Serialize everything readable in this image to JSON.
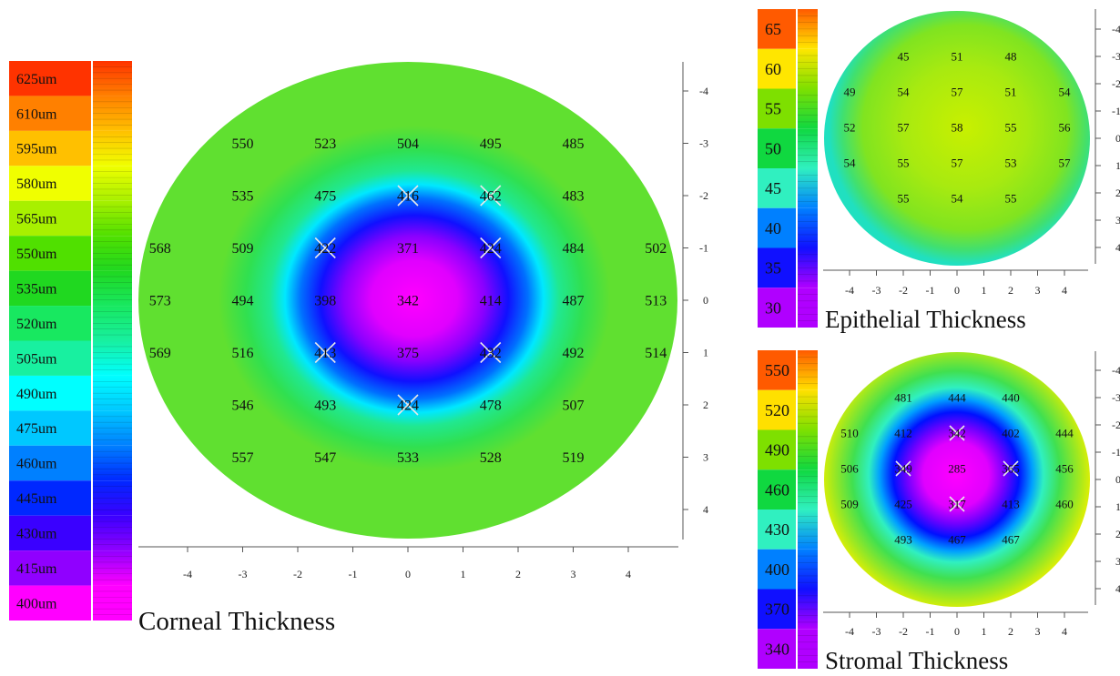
{
  "panels": [
    {
      "title": "Corneal Thickness",
      "legend_unit": "um",
      "legend_labels": [
        625,
        610,
        595,
        580,
        565,
        550,
        535,
        520,
        505,
        490,
        475,
        460,
        445,
        430,
        415,
        400
      ],
      "legend_colors": [
        "#ff3300",
        "#ff8000",
        "#ffc000",
        "#f0ff00",
        "#a8f000",
        "#50e000",
        "#20d820",
        "#18e860",
        "#18f0a0",
        "#00ffff",
        "#00c8ff",
        "#0080ff",
        "#0028ff",
        "#3a00ff",
        "#9000ff",
        "#ff00ff"
      ],
      "x_ticks": [
        -4,
        -3,
        -2,
        -1,
        0,
        1,
        2,
        3,
        4
      ],
      "y_ticks": [
        -4,
        -3,
        -2,
        -1,
        0,
        1,
        2,
        3,
        4
      ],
      "points": [
        {
          "x": -3,
          "y": -3,
          "v": "550"
        },
        {
          "x": -1.5,
          "y": -3,
          "v": "523"
        },
        {
          "x": 0,
          "y": -3,
          "v": "504"
        },
        {
          "x": 1.5,
          "y": -3,
          "v": "495"
        },
        {
          "x": 3,
          "y": -3,
          "v": "485"
        },
        {
          "x": -3,
          "y": -2,
          "v": "535"
        },
        {
          "x": -1.5,
          "y": -2,
          "v": "475"
        },
        {
          "x": 0,
          "y": -2,
          "v": "416",
          "mark": true
        },
        {
          "x": 1.5,
          "y": -2,
          "v": "462",
          "mark": true
        },
        {
          "x": 3,
          "y": -2,
          "v": "483"
        },
        {
          "x": -4.5,
          "y": -1,
          "v": "568"
        },
        {
          "x": -3,
          "y": -1,
          "v": "509"
        },
        {
          "x": -1.5,
          "y": -1,
          "v": "422",
          "mark": true
        },
        {
          "x": 0,
          "y": -1,
          "v": "371"
        },
        {
          "x": 1.5,
          "y": -1,
          "v": "424",
          "mark": true
        },
        {
          "x": 3,
          "y": -1,
          "v": "484"
        },
        {
          "x": 4.5,
          "y": -1,
          "v": "502"
        },
        {
          "x": -4.5,
          "y": 0,
          "v": "573"
        },
        {
          "x": -3,
          "y": 0,
          "v": "494"
        },
        {
          "x": -1.5,
          "y": 0,
          "v": "398"
        },
        {
          "x": 0,
          "y": 0,
          "v": "342"
        },
        {
          "x": 1.5,
          "y": 0,
          "v": "414"
        },
        {
          "x": 3,
          "y": 0,
          "v": "487"
        },
        {
          "x": 4.5,
          "y": 0,
          "v": "513"
        },
        {
          "x": -4.5,
          "y": 1,
          "v": "569"
        },
        {
          "x": -3,
          "y": 1,
          "v": "516"
        },
        {
          "x": -1.5,
          "y": 1,
          "v": "413",
          "mark": true
        },
        {
          "x": 0,
          "y": 1,
          "v": "375"
        },
        {
          "x": 1.5,
          "y": 1,
          "v": "432",
          "mark": true
        },
        {
          "x": 3,
          "y": 1,
          "v": "492"
        },
        {
          "x": 4.5,
          "y": 1,
          "v": "514"
        },
        {
          "x": -3,
          "y": 2,
          "v": "546"
        },
        {
          "x": -1.5,
          "y": 2,
          "v": "493"
        },
        {
          "x": 0,
          "y": 2,
          "v": "424",
          "mark": true
        },
        {
          "x": 1.5,
          "y": 2,
          "v": "478"
        },
        {
          "x": 3,
          "y": 2,
          "v": "507"
        },
        {
          "x": -3,
          "y": 3,
          "v": "557"
        },
        {
          "x": -1.5,
          "y": 3,
          "v": "547"
        },
        {
          "x": 0,
          "y": 3,
          "v": "533"
        },
        {
          "x": 1.5,
          "y": 3,
          "v": "528"
        },
        {
          "x": 3,
          "y": 3,
          "v": "519"
        }
      ],
      "map_gradient": [
        {
          "offset": 0.0,
          "color": "#ff00ff"
        },
        {
          "offset": 0.22,
          "color": "#e000ff"
        },
        {
          "offset": 0.36,
          "color": "#8a00ff"
        },
        {
          "offset": 0.48,
          "color": "#1010ff"
        },
        {
          "offset": 0.58,
          "color": "#0070ff"
        },
        {
          "offset": 0.66,
          "color": "#00e8ff"
        },
        {
          "offset": 0.74,
          "color": "#20e890"
        },
        {
          "offset": 0.86,
          "color": "#30e050"
        },
        {
          "offset": 1.0,
          "color": "#60e030"
        }
      ]
    },
    {
      "title": "Epithelial Thickness",
      "legend_unit": "",
      "legend_labels": [
        65,
        60,
        55,
        50,
        45,
        40,
        35,
        30
      ],
      "legend_colors": [
        "#ff5a00",
        "#ffe600",
        "#7ee000",
        "#10d840",
        "#30f0c0",
        "#0080ff",
        "#1010ff",
        "#b000ff"
      ],
      "x_ticks": [
        -4,
        -3,
        -2,
        -1,
        0,
        1,
        2,
        3,
        4
      ],
      "y_ticks": [
        -4,
        -3,
        -2,
        -1,
        0,
        1,
        2,
        3,
        4
      ],
      "points": [
        {
          "x": -2,
          "y": -3,
          "v": "45"
        },
        {
          "x": 0,
          "y": -3,
          "v": "51"
        },
        {
          "x": 2,
          "y": -3,
          "v": "48"
        },
        {
          "x": -4,
          "y": -1.7,
          "v": "49"
        },
        {
          "x": -2,
          "y": -1.7,
          "v": "54"
        },
        {
          "x": 0,
          "y": -1.7,
          "v": "57"
        },
        {
          "x": 2,
          "y": -1.7,
          "v": "51"
        },
        {
          "x": 4,
          "y": -1.7,
          "v": "54"
        },
        {
          "x": -4,
          "y": -0.4,
          "v": "52"
        },
        {
          "x": -2,
          "y": -0.4,
          "v": "57"
        },
        {
          "x": 0,
          "y": -0.4,
          "v": "58"
        },
        {
          "x": 2,
          "y": -0.4,
          "v": "55"
        },
        {
          "x": 4,
          "y": -0.4,
          "v": "56"
        },
        {
          "x": -4,
          "y": 0.9,
          "v": "54"
        },
        {
          "x": -2,
          "y": 0.9,
          "v": "55"
        },
        {
          "x": 0,
          "y": 0.9,
          "v": "57"
        },
        {
          "x": 2,
          "y": 0.9,
          "v": "53"
        },
        {
          "x": 4,
          "y": 0.9,
          "v": "57"
        },
        {
          "x": -2,
          "y": 2.2,
          "v": "55"
        },
        {
          "x": 0,
          "y": 2.2,
          "v": "54"
        },
        {
          "x": 2,
          "y": 2.2,
          "v": "55"
        }
      ],
      "map_gradient": [
        {
          "offset": 0.0,
          "color": "#c8f000"
        },
        {
          "offset": 0.45,
          "color": "#a8ea10"
        },
        {
          "offset": 0.75,
          "color": "#80e420"
        },
        {
          "offset": 0.9,
          "color": "#40e070"
        },
        {
          "offset": 1.0,
          "color": "#20e0c0"
        }
      ]
    },
    {
      "title": "Stromal Thickness",
      "legend_unit": "",
      "legend_labels": [
        550,
        520,
        490,
        460,
        430,
        400,
        370,
        340
      ],
      "legend_colors": [
        "#ff5a00",
        "#ffe000",
        "#7ee000",
        "#10d840",
        "#30f0c0",
        "#0080ff",
        "#1010ff",
        "#b000ff"
      ],
      "x_ticks": [
        -4,
        -3,
        -2,
        -1,
        0,
        1,
        2,
        3,
        4
      ],
      "y_ticks": [
        -4,
        -3,
        -2,
        -1,
        0,
        1,
        2,
        3,
        4
      ],
      "points": [
        {
          "x": -2,
          "y": -3,
          "v": "481"
        },
        {
          "x": 0,
          "y": -3,
          "v": "444"
        },
        {
          "x": 2,
          "y": -3,
          "v": "440"
        },
        {
          "x": -4,
          "y": -1.7,
          "v": "510"
        },
        {
          "x": -2,
          "y": -1.7,
          "v": "412"
        },
        {
          "x": 0,
          "y": -1.7,
          "v": "342",
          "mark": true
        },
        {
          "x": 2,
          "y": -1.7,
          "v": "402"
        },
        {
          "x": 4,
          "y": -1.7,
          "v": "444"
        },
        {
          "x": -4,
          "y": -0.4,
          "v": "506"
        },
        {
          "x": -2,
          "y": -0.4,
          "v": "349",
          "mark": true
        },
        {
          "x": 0,
          "y": -0.4,
          "v": "285"
        },
        {
          "x": 2,
          "y": -0.4,
          "v": "365",
          "mark": true
        },
        {
          "x": 4,
          "y": -0.4,
          "v": "456"
        },
        {
          "x": -4,
          "y": 0.9,
          "v": "509"
        },
        {
          "x": -2,
          "y": 0.9,
          "v": "425"
        },
        {
          "x": 0,
          "y": 0.9,
          "v": "317",
          "mark": true
        },
        {
          "x": 2,
          "y": 0.9,
          "v": "413"
        },
        {
          "x": 4,
          "y": 0.9,
          "v": "460"
        },
        {
          "x": -2,
          "y": 2.2,
          "v": "493"
        },
        {
          "x": 0,
          "y": 2.2,
          "v": "467"
        },
        {
          "x": 2,
          "y": 2.2,
          "v": "467"
        }
      ],
      "map_gradient": [
        {
          "offset": 0.0,
          "color": "#ff00ff"
        },
        {
          "offset": 0.24,
          "color": "#e000ff"
        },
        {
          "offset": 0.36,
          "color": "#7000ff"
        },
        {
          "offset": 0.46,
          "color": "#0010ff"
        },
        {
          "offset": 0.56,
          "color": "#00a0ff"
        },
        {
          "offset": 0.64,
          "color": "#30f0c0"
        },
        {
          "offset": 0.76,
          "color": "#40e050"
        },
        {
          "offset": 0.9,
          "color": "#a0e820"
        },
        {
          "offset": 1.0,
          "color": "#e8f000"
        }
      ]
    }
  ]
}
